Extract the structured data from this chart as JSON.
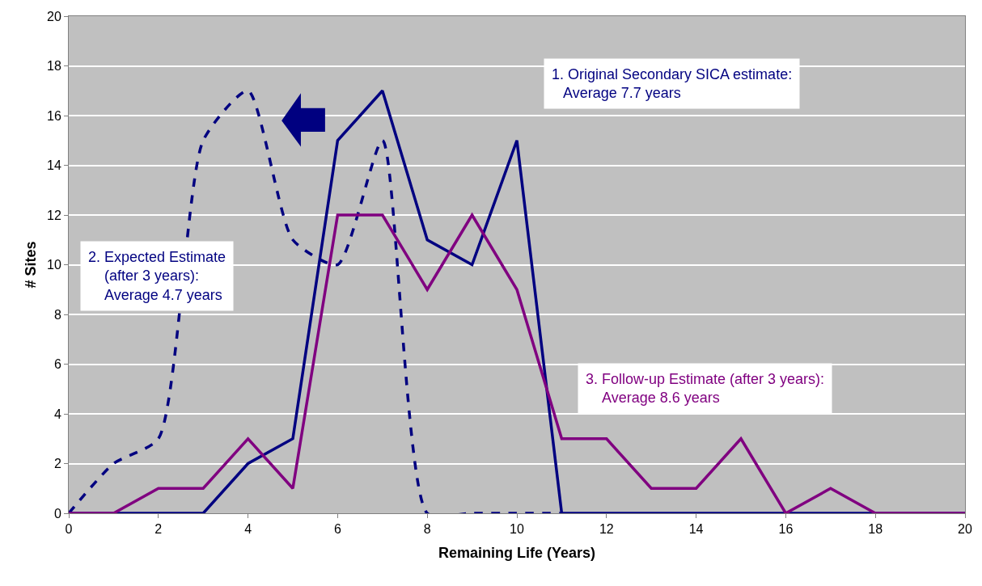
{
  "chart_data": {
    "type": "line",
    "xlabel": "Remaining Life (Years)",
    "ylabel": "# Sites",
    "xlim": [
      0,
      20
    ],
    "xticks": [
      0,
      2,
      4,
      6,
      8,
      10,
      12,
      14,
      16,
      18,
      20
    ],
    "ylim": [
      0,
      20
    ],
    "yticks": [
      0,
      2,
      4,
      6,
      8,
      10,
      12,
      14,
      16,
      18,
      20
    ],
    "grid": "y",
    "series": [
      {
        "color": "#000080",
        "line_style": "solid",
        "x": [
          0,
          1,
          2,
          3,
          4,
          5,
          6,
          7,
          8,
          9,
          10,
          11,
          12,
          13,
          14,
          15,
          16,
          17,
          18,
          19,
          20
        ],
        "values": [
          0,
          0,
          0,
          0,
          2,
          3,
          15,
          17,
          11,
          10,
          15,
          0,
          0,
          0,
          0,
          0,
          0,
          0,
          0,
          0,
          0
        ]
      },
      {
        "color": "#000080",
        "line_style": "dashed",
        "x": [
          0,
          1,
          2,
          3,
          4,
          5,
          6,
          7,
          8,
          9,
          10,
          11
        ],
        "values": [
          0,
          2,
          3,
          15,
          17,
          11,
          10,
          15,
          0,
          0,
          0,
          0
        ]
      },
      {
        "color": "#800080",
        "line_style": "solid",
        "x": [
          0,
          1,
          2,
          3,
          4,
          5,
          6,
          7,
          8,
          9,
          10,
          11,
          12,
          13,
          14,
          15,
          16,
          17,
          18,
          19,
          20
        ],
        "values": [
          0,
          0,
          1,
          1,
          3,
          1,
          12,
          12,
          9,
          12,
          9,
          3,
          3,
          1,
          1,
          3,
          0,
          1,
          0,
          0,
          0
        ]
      }
    ],
    "annotations": [
      "1. Original Secondary SICA estimate:\n   Average 7.7 years",
      "2. Expected Estimate\n    (after 3 years):\n    Average 4.7 years",
      "3. Follow-up Estimate (after 3 years):\n    Average 8.6 years"
    ]
  }
}
